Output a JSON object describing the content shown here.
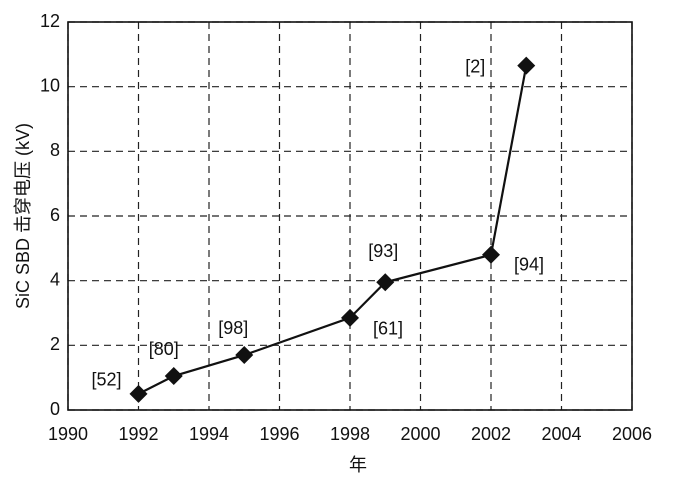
{
  "chart_data": {
    "type": "line",
    "x_label": "年",
    "y_label": "SiC SBD 击穿电压 (kV)",
    "x": [
      1992,
      1993,
      1995,
      1998,
      1999,
      2002,
      2003
    ],
    "series": [
      {
        "color": "#111111",
        "values": [
          0.5,
          1.05,
          1.7,
          2.85,
          3.95,
          4.8,
          10.65
        ],
        "point_labels": [
          "[52]",
          "[80]",
          "[98]",
          "[61]",
          "[93]",
          "[94]",
          "[2]"
        ]
      }
    ],
    "xlim": [
      1990,
      2006
    ],
    "xticks": [
      1990,
      1992,
      1994,
      1996,
      1998,
      2000,
      2002,
      2004,
      2006
    ],
    "ylim": [
      0,
      12
    ],
    "yticks": [
      0,
      2,
      4,
      6,
      8,
      10,
      12
    ],
    "grid": true
  }
}
